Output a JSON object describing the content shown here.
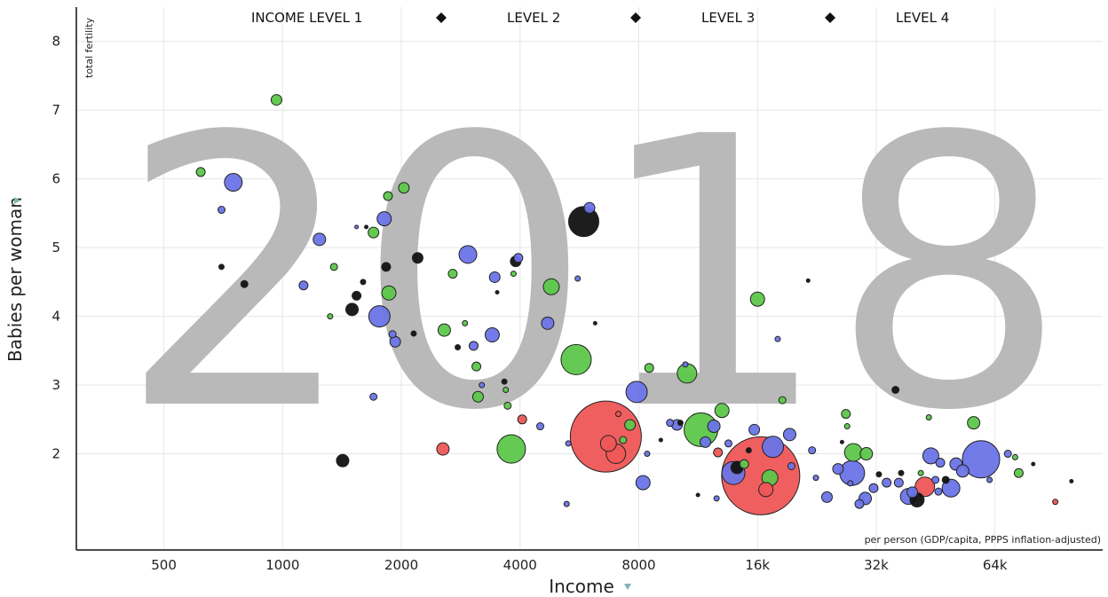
{
  "chart_data": {
    "type": "scatter",
    "year": "2018",
    "xlabel": "Income",
    "ylabel": "Babies per woman",
    "y_axis_note": "total fertility",
    "x_axis_note": "per person (GDP/capita, PPPS inflation-adjusted)",
    "x_scale": "log2",
    "xlim": [
      300,
      120000
    ],
    "ylim": [
      0.6,
      8.5
    ],
    "x_ticks": [
      500,
      1000,
      2000,
      4000,
      8000,
      16000,
      32000,
      64000
    ],
    "x_tick_labels": [
      "500",
      "1000",
      "2000",
      "4000",
      "8000",
      "16k",
      "32k",
      "64k"
    ],
    "y_ticks": [
      2,
      3,
      4,
      5,
      6,
      7,
      8
    ],
    "y_tick_labels": [
      "2",
      "3",
      "4",
      "5",
      "6",
      "7",
      "8"
    ],
    "grid": true,
    "legend_position": "top",
    "legend": [
      "INCOME LEVEL 1",
      "LEVEL 2",
      "LEVEL 3",
      "LEVEL 4"
    ],
    "colors": {
      "black": "#111111",
      "blue": "#6a74e6",
      "green": "#5cc74a",
      "red": "#ef5656"
    },
    "points": [
      {
        "x": 620,
        "y": 6.1,
        "r": 5,
        "c": "green"
      },
      {
        "x": 700,
        "y": 5.55,
        "r": 4,
        "c": "blue"
      },
      {
        "x": 750,
        "y": 5.95,
        "r": 10,
        "c": "blue"
      },
      {
        "x": 700,
        "y": 4.72,
        "r": 3,
        "c": "black"
      },
      {
        "x": 800,
        "y": 4.47,
        "r": 4,
        "c": "black"
      },
      {
        "x": 965,
        "y": 7.15,
        "r": 6,
        "c": "green"
      },
      {
        "x": 1130,
        "y": 4.45,
        "r": 5,
        "c": "blue"
      },
      {
        "x": 1240,
        "y": 5.12,
        "r": 7,
        "c": "blue"
      },
      {
        "x": 1320,
        "y": 4.0,
        "r": 3,
        "c": "green"
      },
      {
        "x": 1350,
        "y": 4.72,
        "r": 4,
        "c": "green"
      },
      {
        "x": 1420,
        "y": 1.9,
        "r": 7,
        "c": "black"
      },
      {
        "x": 1500,
        "y": 4.1,
        "r": 7,
        "c": "black"
      },
      {
        "x": 1540,
        "y": 4.3,
        "r": 5,
        "c": "black"
      },
      {
        "x": 1540,
        "y": 5.3,
        "r": 2,
        "c": "blue"
      },
      {
        "x": 1600,
        "y": 4.5,
        "r": 3,
        "c": "black"
      },
      {
        "x": 1630,
        "y": 5.3,
        "r": 2,
        "c": "black"
      },
      {
        "x": 1700,
        "y": 5.22,
        "r": 6,
        "c": "green"
      },
      {
        "x": 1700,
        "y": 2.83,
        "r": 4,
        "c": "blue"
      },
      {
        "x": 1760,
        "y": 4.0,
        "r": 12,
        "c": "blue"
      },
      {
        "x": 1810,
        "y": 5.42,
        "r": 8,
        "c": "blue"
      },
      {
        "x": 1830,
        "y": 4.72,
        "r": 5,
        "c": "black"
      },
      {
        "x": 1850,
        "y": 5.75,
        "r": 5,
        "c": "green"
      },
      {
        "x": 1860,
        "y": 4.34,
        "r": 8,
        "c": "green"
      },
      {
        "x": 1900,
        "y": 3.74,
        "r": 4,
        "c": "blue"
      },
      {
        "x": 1930,
        "y": 3.63,
        "r": 6,
        "c": "blue"
      },
      {
        "x": 2030,
        "y": 5.87,
        "r": 6,
        "c": "green"
      },
      {
        "x": 2150,
        "y": 3.75,
        "r": 3,
        "c": "black"
      },
      {
        "x": 2200,
        "y": 4.85,
        "r": 6,
        "c": "black"
      },
      {
        "x": 2550,
        "y": 2.07,
        "r": 7,
        "c": "red"
      },
      {
        "x": 2570,
        "y": 3.8,
        "r": 7,
        "c": "green"
      },
      {
        "x": 2700,
        "y": 4.62,
        "r": 5,
        "c": "green"
      },
      {
        "x": 2780,
        "y": 3.55,
        "r": 3,
        "c": "black"
      },
      {
        "x": 2900,
        "y": 3.9,
        "r": 3,
        "c": "green"
      },
      {
        "x": 2950,
        "y": 4.9,
        "r": 10,
        "c": "blue"
      },
      {
        "x": 3050,
        "y": 3.57,
        "r": 5,
        "c": "blue"
      },
      {
        "x": 3100,
        "y": 3.27,
        "r": 5,
        "c": "green"
      },
      {
        "x": 3130,
        "y": 2.83,
        "r": 6,
        "c": "green"
      },
      {
        "x": 3200,
        "y": 3.0,
        "r": 3,
        "c": "blue"
      },
      {
        "x": 3400,
        "y": 3.73,
        "r": 8,
        "c": "blue"
      },
      {
        "x": 3450,
        "y": 4.57,
        "r": 6,
        "c": "blue"
      },
      {
        "x": 3500,
        "y": 4.35,
        "r": 2,
        "c": "black"
      },
      {
        "x": 3650,
        "y": 3.05,
        "r": 3,
        "c": "black"
      },
      {
        "x": 3680,
        "y": 2.93,
        "r": 3,
        "c": "green"
      },
      {
        "x": 3720,
        "y": 2.7,
        "r": 4,
        "c": "green"
      },
      {
        "x": 3800,
        "y": 2.07,
        "r": 16,
        "c": "green"
      },
      {
        "x": 3850,
        "y": 4.62,
        "r": 3,
        "c": "green"
      },
      {
        "x": 3900,
        "y": 4.8,
        "r": 6,
        "c": "black"
      },
      {
        "x": 3960,
        "y": 4.85,
        "r": 5,
        "c": "blue"
      },
      {
        "x": 4050,
        "y": 2.5,
        "r": 5,
        "c": "red"
      },
      {
        "x": 4500,
        "y": 2.4,
        "r": 4,
        "c": "blue"
      },
      {
        "x": 4700,
        "y": 3.9,
        "r": 7,
        "c": "blue"
      },
      {
        "x": 4800,
        "y": 4.43,
        "r": 9,
        "c": "green"
      },
      {
        "x": 5300,
        "y": 2.15,
        "r": 3,
        "c": "blue"
      },
      {
        "x": 5550,
        "y": 3.37,
        "r": 17,
        "c": "green"
      },
      {
        "x": 5250,
        "y": 1.27,
        "r": 3,
        "c": "blue"
      },
      {
        "x": 5600,
        "y": 4.55,
        "r": 3,
        "c": "blue"
      },
      {
        "x": 5800,
        "y": 5.38,
        "r": 17,
        "c": "black"
      },
      {
        "x": 6000,
        "y": 5.58,
        "r": 6,
        "c": "blue"
      },
      {
        "x": 6200,
        "y": 3.9,
        "r": 2,
        "c": "black"
      },
      {
        "x": 6600,
        "y": 2.25,
        "r": 40,
        "c": "red"
      },
      {
        "x": 6700,
        "y": 2.15,
        "r": 9,
        "c": "red"
      },
      {
        "x": 7000,
        "y": 2.0,
        "r": 11,
        "c": "red"
      },
      {
        "x": 7100,
        "y": 2.58,
        "r": 3,
        "c": "red"
      },
      {
        "x": 7300,
        "y": 2.2,
        "r": 4,
        "c": "green"
      },
      {
        "x": 7600,
        "y": 2.42,
        "r": 6,
        "c": "green"
      },
      {
        "x": 7900,
        "y": 2.9,
        "r": 12,
        "c": "blue"
      },
      {
        "x": 8200,
        "y": 1.58,
        "r": 8,
        "c": "blue"
      },
      {
        "x": 8400,
        "y": 2.0,
        "r": 3,
        "c": "blue"
      },
      {
        "x": 8500,
        "y": 3.25,
        "r": 5,
        "c": "green"
      },
      {
        "x": 9100,
        "y": 2.2,
        "r": 2,
        "c": "black"
      },
      {
        "x": 9600,
        "y": 2.45,
        "r": 4,
        "c": "blue"
      },
      {
        "x": 10000,
        "y": 2.42,
        "r": 6,
        "c": "blue"
      },
      {
        "x": 10600,
        "y": 3.17,
        "r": 11,
        "c": "green"
      },
      {
        "x": 10500,
        "y": 3.3,
        "r": 3,
        "c": "blue"
      },
      {
        "x": 10200,
        "y": 2.45,
        "r": 3,
        "c": "black"
      },
      {
        "x": 11300,
        "y": 1.4,
        "r": 2,
        "c": "black"
      },
      {
        "x": 11500,
        "y": 2.35,
        "r": 19,
        "c": "green"
      },
      {
        "x": 11800,
        "y": 2.17,
        "r": 6,
        "c": "blue"
      },
      {
        "x": 12400,
        "y": 2.4,
        "r": 7,
        "c": "blue"
      },
      {
        "x": 12700,
        "y": 2.02,
        "r": 5,
        "c": "red"
      },
      {
        "x": 13000,
        "y": 2.63,
        "r": 8,
        "c": "green"
      },
      {
        "x": 12600,
        "y": 1.35,
        "r": 3,
        "c": "blue"
      },
      {
        "x": 13500,
        "y": 2.15,
        "r": 4,
        "c": "blue"
      },
      {
        "x": 13900,
        "y": 1.72,
        "r": 13,
        "c": "blue"
      },
      {
        "x": 14200,
        "y": 1.8,
        "r": 7,
        "c": "black"
      },
      {
        "x": 14800,
        "y": 1.85,
        "r": 5,
        "c": "green"
      },
      {
        "x": 15200,
        "y": 2.05,
        "r": 3,
        "c": "black"
      },
      {
        "x": 15700,
        "y": 2.35,
        "r": 6,
        "c": "blue"
      },
      {
        "x": 16000,
        "y": 4.25,
        "r": 8,
        "c": "green"
      },
      {
        "x": 16300,
        "y": 1.68,
        "r": 44,
        "c": "red"
      },
      {
        "x": 16800,
        "y": 1.48,
        "r": 8,
        "c": "red"
      },
      {
        "x": 17200,
        "y": 1.65,
        "r": 9,
        "c": "green"
      },
      {
        "x": 17500,
        "y": 2.1,
        "r": 12,
        "c": "blue"
      },
      {
        "x": 18000,
        "y": 3.67,
        "r": 3,
        "c": "blue"
      },
      {
        "x": 18500,
        "y": 2.78,
        "r": 4,
        "c": "green"
      },
      {
        "x": 19300,
        "y": 2.28,
        "r": 7,
        "c": "blue"
      },
      {
        "x": 19500,
        "y": 1.82,
        "r": 4,
        "c": "blue"
      },
      {
        "x": 21500,
        "y": 4.52,
        "r": 2,
        "c": "black"
      },
      {
        "x": 22000,
        "y": 2.05,
        "r": 4,
        "c": "blue"
      },
      {
        "x": 22500,
        "y": 1.65,
        "r": 3,
        "c": "blue"
      },
      {
        "x": 24000,
        "y": 1.37,
        "r": 6,
        "c": "blue"
      },
      {
        "x": 25600,
        "y": 1.78,
        "r": 6,
        "c": "blue"
      },
      {
        "x": 26200,
        "y": 2.17,
        "r": 2,
        "c": "black"
      },
      {
        "x": 26800,
        "y": 2.58,
        "r": 5,
        "c": "green"
      },
      {
        "x": 27000,
        "y": 2.4,
        "r": 3,
        "c": "green"
      },
      {
        "x": 27500,
        "y": 1.57,
        "r": 3,
        "c": "blue"
      },
      {
        "x": 27800,
        "y": 1.72,
        "r": 14,
        "c": "blue"
      },
      {
        "x": 28000,
        "y": 2.02,
        "r": 10,
        "c": "green"
      },
      {
        "x": 29000,
        "y": 1.27,
        "r": 5,
        "c": "blue"
      },
      {
        "x": 30000,
        "y": 1.35,
        "r": 7,
        "c": "blue"
      },
      {
        "x": 30200,
        "y": 2.0,
        "r": 7,
        "c": "green"
      },
      {
        "x": 31500,
        "y": 1.5,
        "r": 5,
        "c": "blue"
      },
      {
        "x": 32500,
        "y": 1.7,
        "r": 3,
        "c": "black"
      },
      {
        "x": 34000,
        "y": 1.58,
        "r": 5,
        "c": "blue"
      },
      {
        "x": 35800,
        "y": 2.93,
        "r": 4,
        "c": "black"
      },
      {
        "x": 36500,
        "y": 1.58,
        "r": 5,
        "c": "blue"
      },
      {
        "x": 37000,
        "y": 1.72,
        "r": 3,
        "c": "black"
      },
      {
        "x": 38600,
        "y": 1.38,
        "r": 9,
        "c": "blue"
      },
      {
        "x": 39500,
        "y": 1.44,
        "r": 6,
        "c": "blue"
      },
      {
        "x": 40600,
        "y": 1.33,
        "r": 8,
        "c": "black"
      },
      {
        "x": 41500,
        "y": 1.72,
        "r": 3,
        "c": "green"
      },
      {
        "x": 42500,
        "y": 1.52,
        "r": 11,
        "c": "red"
      },
      {
        "x": 43500,
        "y": 2.53,
        "r": 3,
        "c": "green"
      },
      {
        "x": 44000,
        "y": 1.97,
        "r": 9,
        "c": "blue"
      },
      {
        "x": 45200,
        "y": 1.62,
        "r": 4,
        "c": "blue"
      },
      {
        "x": 46000,
        "y": 1.45,
        "r": 4,
        "c": "blue"
      },
      {
        "x": 46500,
        "y": 1.87,
        "r": 5,
        "c": "blue"
      },
      {
        "x": 48000,
        "y": 1.62,
        "r": 4,
        "c": "black"
      },
      {
        "x": 49500,
        "y": 1.5,
        "r": 10,
        "c": "blue"
      },
      {
        "x": 51000,
        "y": 1.85,
        "r": 7,
        "c": "blue"
      },
      {
        "x": 53000,
        "y": 1.75,
        "r": 7,
        "c": "blue"
      },
      {
        "x": 56500,
        "y": 2.45,
        "r": 7,
        "c": "green"
      },
      {
        "x": 59000,
        "y": 1.92,
        "r": 21,
        "c": "blue"
      },
      {
        "x": 62000,
        "y": 1.62,
        "r": 3,
        "c": "blue"
      },
      {
        "x": 69000,
        "y": 2.0,
        "r": 4,
        "c": "blue"
      },
      {
        "x": 72000,
        "y": 1.95,
        "r": 3,
        "c": "green"
      },
      {
        "x": 73500,
        "y": 1.72,
        "r": 5,
        "c": "green"
      },
      {
        "x": 80000,
        "y": 1.85,
        "r": 2,
        "c": "black"
      },
      {
        "x": 91000,
        "y": 1.3,
        "r": 3,
        "c": "red"
      },
      {
        "x": 100000,
        "y": 1.6,
        "r": 2,
        "c": "black"
      }
    ]
  }
}
